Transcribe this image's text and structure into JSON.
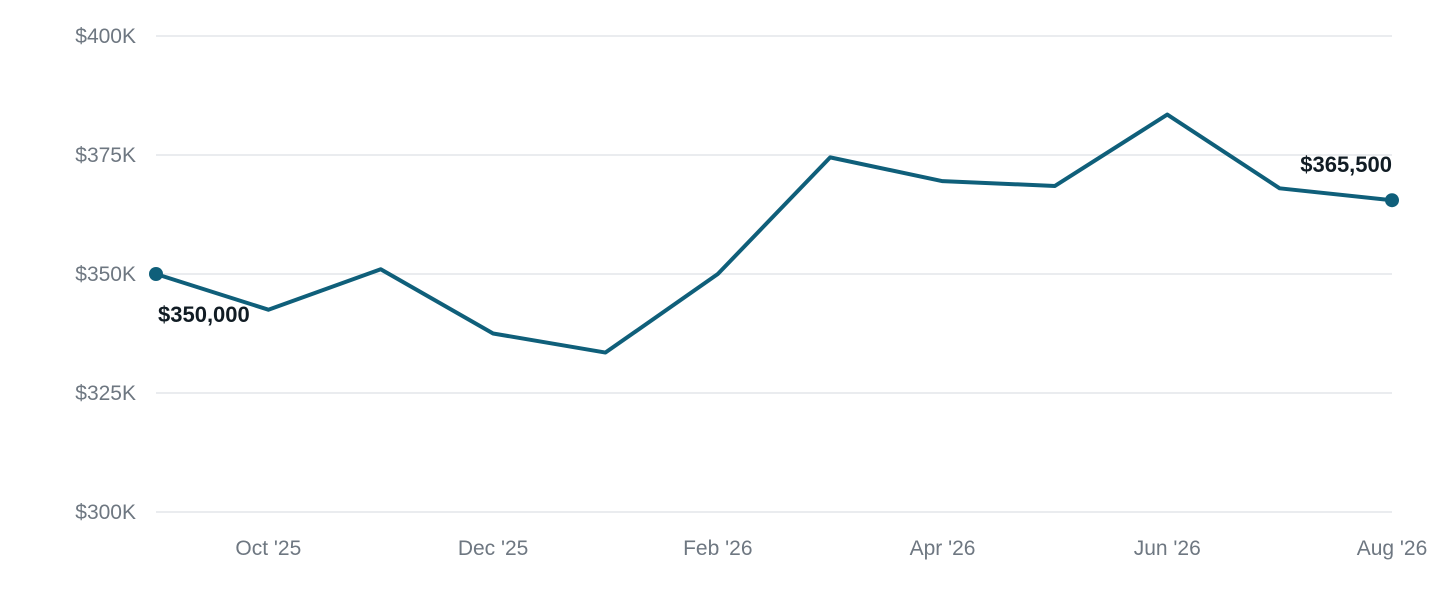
{
  "chart_data": {
    "type": "line",
    "title": "",
    "xlabel": "",
    "ylabel": "",
    "x": [
      "Sep '25",
      "Oct '25",
      "Nov '25",
      "Dec '25",
      "Jan '26",
      "Feb '26",
      "Mar '26",
      "Apr '26",
      "May '26",
      "Jun '26",
      "Jul '26",
      "Aug '26"
    ],
    "x_tick_labels": [
      "Oct '25",
      "Dec '25",
      "Feb '26",
      "Apr '26",
      "Jun '26",
      "Aug '26"
    ],
    "series": [
      {
        "values": [
          350000,
          342500,
          351000,
          337500,
          333500,
          350000,
          374500,
          369500,
          368500,
          383500,
          368000,
          365500
        ],
        "color": "#0f5f7a"
      }
    ],
    "ylim": [
      300000,
      400000
    ],
    "y_ticks": [
      300000,
      325000,
      350000,
      375000,
      400000
    ],
    "y_tick_labels": [
      "$300K",
      "$325K",
      "$350K",
      "$375K",
      "$400K"
    ],
    "grid": true,
    "legend": "none",
    "annotations": [
      {
        "text": "$350,000",
        "index": 0,
        "placement": "below-right"
      },
      {
        "text": "$365,500",
        "index": 11,
        "placement": "above-left"
      }
    ],
    "colors": {
      "line": "#0f5f7a",
      "grid": "#e3e6ea",
      "tick_text": "#6e7781",
      "annotation_text": "#111c24"
    }
  }
}
